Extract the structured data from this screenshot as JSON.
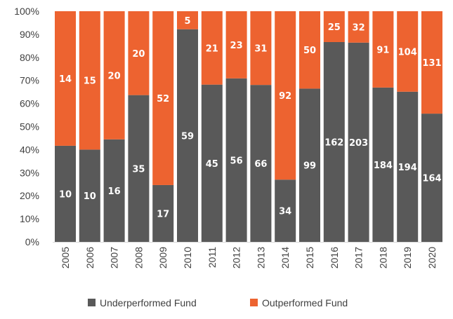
{
  "chart_data": {
    "type": "bar",
    "stacked": "percent",
    "categories": [
      "2005",
      "2006",
      "2007",
      "2008",
      "2009",
      "2010",
      "2011",
      "2012",
      "2013",
      "2014",
      "2015",
      "2016",
      "2017",
      "2018",
      "2019",
      "2020"
    ],
    "series": [
      {
        "name": "Underperformed Fund",
        "color": "#595959",
        "values": [
          10,
          10,
          16,
          35,
          17,
          59,
          45,
          56,
          66,
          34,
          99,
          162,
          203,
          184,
          194,
          164
        ]
      },
      {
        "name": "Outperformed Fund",
        "color": "#ED6330",
        "values": [
          14,
          15,
          20,
          20,
          52,
          5,
          21,
          23,
          31,
          92,
          50,
          25,
          32,
          91,
          104,
          131
        ]
      }
    ],
    "y_ticks": [
      "0%",
      "10%",
      "20%",
      "30%",
      "40%",
      "50%",
      "60%",
      "70%",
      "80%",
      "90%",
      "100%"
    ],
    "ylim": [
      0,
      100
    ],
    "grid": false,
    "legend": "bottom"
  }
}
